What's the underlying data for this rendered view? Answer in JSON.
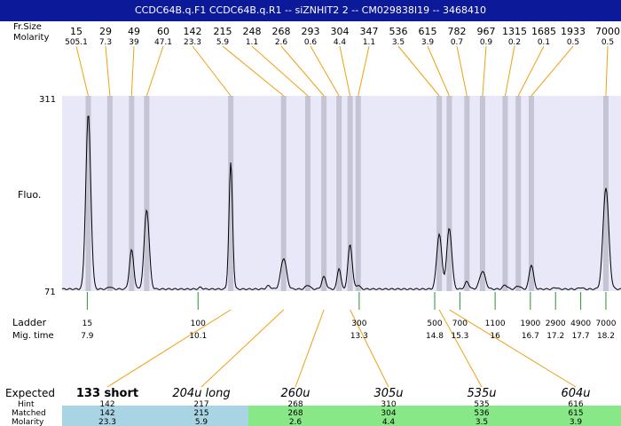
{
  "title": "CCDC64B.q.F1  CCDC64B.q.R1 -- siZNHIT2 2 -- CM029838I19 -- 3468410",
  "labels": {
    "size_row": "Fr.Size",
    "molarity_row": "Molarity",
    "fluo_axis": "Fluo.",
    "ladder_row": "Ladder",
    "migtime_row": "Mig. time",
    "expected_row": "Expected",
    "hint_row": "Hint",
    "matched_row": "Matched",
    "matched_molarity_row": "Molarity"
  },
  "colors": {
    "title_bg": "#0c1a99",
    "plot_bg": "#e8e8f8",
    "band": "#c4c4d4",
    "connector": "#f0a010",
    "ladder_tick": "#2f8f2f",
    "matched_blue": "#a8d4e4",
    "matched_green": "#88e888",
    "trace": "#000000"
  },
  "chart_data": {
    "type": "line",
    "y_axis": {
      "label": "Fluo.",
      "ylim": [
        71,
        311
      ],
      "ticks": [
        "311",
        "71"
      ]
    },
    "x_axis": {
      "label": "Mig. time",
      "range": [
        7.4,
        18.5
      ]
    },
    "peaks": [
      {
        "size": "15",
        "molarity": "505.1",
        "time": 7.92
      },
      {
        "size": "29",
        "molarity": "7.3",
        "time": 8.35
      },
      {
        "size": "49",
        "molarity": "39",
        "time": 8.78
      },
      {
        "size": "60",
        "molarity": "47.1",
        "time": 9.08
      },
      {
        "size": "142",
        "molarity": "23.3",
        "time": 10.75
      },
      {
        "size": "215",
        "molarity": "5.9",
        "time": 11.8
      },
      {
        "size": "248",
        "molarity": "1.1",
        "time": 12.28
      },
      {
        "size": "268",
        "molarity": "2.6",
        "time": 12.6
      },
      {
        "size": "293",
        "molarity": "0.6",
        "time": 12.9
      },
      {
        "size": "304",
        "molarity": "4.4",
        "time": 13.12
      },
      {
        "size": "347",
        "molarity": "1.1",
        "time": 13.28
      },
      {
        "size": "536",
        "molarity": "3.5",
        "time": 14.89
      },
      {
        "size": "615",
        "molarity": "3.9",
        "time": 15.09
      },
      {
        "size": "782",
        "molarity": "0.7",
        "time": 15.44
      },
      {
        "size": "967",
        "molarity": "0.9",
        "time": 15.75
      },
      {
        "size": "1315",
        "molarity": "0.2",
        "time": 16.2
      },
      {
        "size": "1685",
        "molarity": "0.1",
        "time": 16.46
      },
      {
        "size": "1933",
        "molarity": "0.5",
        "time": 16.72
      },
      {
        "size": "7000",
        "molarity": "0.5",
        "time": 18.2
      }
    ],
    "ladder": [
      {
        "size": "15",
        "time": "7.9",
        "t": 7.9
      },
      {
        "size": "100",
        "time": "10.1",
        "t": 10.1
      },
      {
        "size": "300",
        "time": "13.3",
        "t": 13.3
      },
      {
        "size": "500",
        "time": "14.8",
        "t": 14.8
      },
      {
        "size": "700",
        "time": "15.3",
        "t": 15.3
      },
      {
        "size": "1100",
        "time": "16",
        "t": 16.0
      },
      {
        "size": "1900",
        "time": "16.7",
        "t": 16.7
      },
      {
        "size": "2900",
        "time": "17.2",
        "t": 17.2
      },
      {
        "size": "4900",
        "time": "17.7",
        "t": 17.7
      },
      {
        "size": "7000",
        "time": "18.2",
        "t": 18.2
      }
    ],
    "trace_peaks": [
      {
        "t": 7.92,
        "h": 215,
        "w": 0.07
      },
      {
        "t": 8.35,
        "h": 3,
        "w": 0.05
      },
      {
        "t": 8.78,
        "h": 48,
        "w": 0.06
      },
      {
        "t": 9.08,
        "h": 98,
        "w": 0.07
      },
      {
        "t": 10.15,
        "h": 2,
        "w": 0.05
      },
      {
        "t": 10.75,
        "h": 155,
        "w": 0.05
      },
      {
        "t": 11.5,
        "h": 4,
        "w": 0.06
      },
      {
        "t": 11.8,
        "h": 38,
        "w": 0.08
      },
      {
        "t": 12.28,
        "h": 5,
        "w": 0.06
      },
      {
        "t": 12.6,
        "h": 15,
        "w": 0.06
      },
      {
        "t": 12.9,
        "h": 26,
        "w": 0.05
      },
      {
        "t": 13.12,
        "h": 55,
        "w": 0.06
      },
      {
        "t": 13.28,
        "h": 5,
        "w": 0.05
      },
      {
        "t": 14.89,
        "h": 68,
        "w": 0.07
      },
      {
        "t": 15.09,
        "h": 75,
        "w": 0.07
      },
      {
        "t": 15.44,
        "h": 9,
        "w": 0.06
      },
      {
        "t": 15.75,
        "h": 22,
        "w": 0.08
      },
      {
        "t": 16.2,
        "h": 5,
        "w": 0.06
      },
      {
        "t": 16.46,
        "h": 4,
        "w": 0.06
      },
      {
        "t": 16.72,
        "h": 30,
        "w": 0.06
      },
      {
        "t": 17.2,
        "h": 2,
        "w": 0.05
      },
      {
        "t": 17.7,
        "h": 2,
        "w": 0.05
      },
      {
        "t": 18.2,
        "h": 125,
        "w": 0.08
      }
    ],
    "expected": [
      {
        "label": "133 short",
        "hint": "142",
        "matched": "142",
        "molarity": "23.3",
        "style": "bold",
        "matched_color": "blue",
        "peak_index": 4
      },
      {
        "label": "204u long",
        "hint": "217",
        "matched": "215",
        "molarity": "5.9",
        "style": "italic",
        "matched_color": "blue",
        "peak_index": 5
      },
      {
        "label": "260u",
        "hint": "268",
        "matched": "268",
        "molarity": "2.6",
        "style": "italic",
        "matched_color": "green",
        "peak_index": 7
      },
      {
        "label": "305u",
        "hint": "310",
        "matched": "304",
        "molarity": "4.4",
        "style": "italic",
        "matched_color": "green",
        "peak_index": 9
      },
      {
        "label": "535u",
        "hint": "535",
        "matched": "536",
        "molarity": "3.5",
        "style": "italic",
        "matched_color": "green",
        "peak_index": 11
      },
      {
        "label": "604u",
        "hint": "616",
        "matched": "615",
        "molarity": "3.9",
        "style": "italic",
        "matched_color": "green",
        "peak_index": 12
      }
    ]
  }
}
